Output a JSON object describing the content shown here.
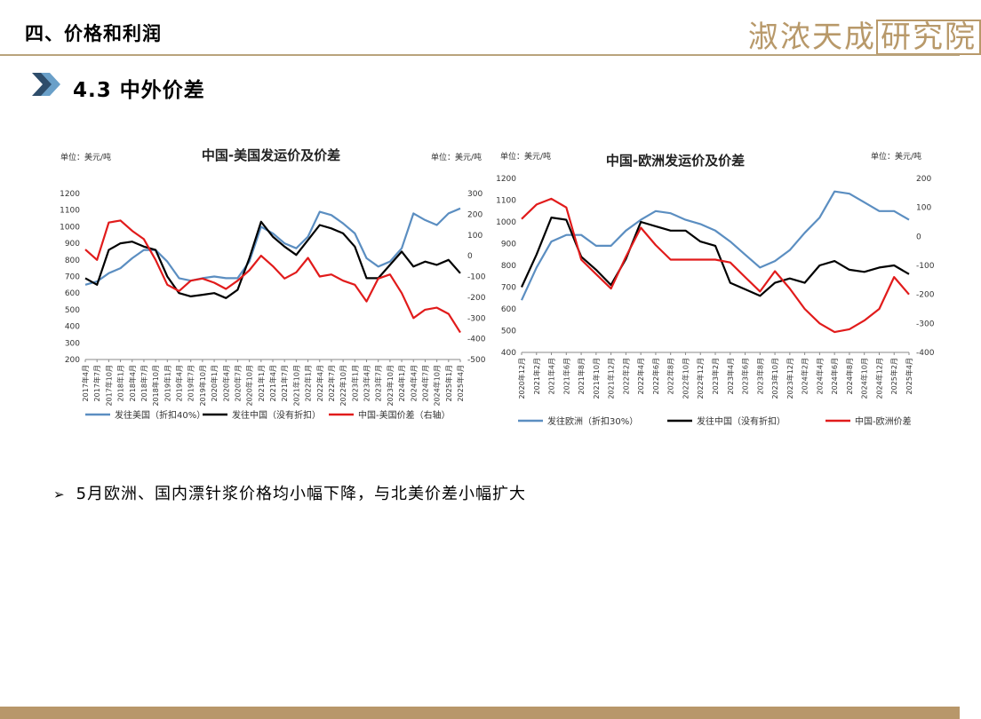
{
  "header": {
    "section_title": "四、价格和利润",
    "logo_text_a": "淑浓天成",
    "logo_text_b": "研究院"
  },
  "subtitle": "4.3 中外价差",
  "bullet": "5月欧洲、国内漂针浆价格均小幅下降，与北美价差小幅扩大",
  "colors": {
    "blue": "#5b8ec1",
    "black": "#000000",
    "red": "#e11b1b",
    "gold": "#b8996a"
  },
  "chart_data": [
    {
      "type": "line",
      "title": "中国-美国发运价及价差",
      "unit_left": "单位：美元/吨",
      "unit_right": "单位：美元/吨",
      "x_labels": [
        "2017年4月",
        "2017年7月",
        "2017年10月",
        "2018年1月",
        "2018年4月",
        "2018年7月",
        "2018年10月",
        "2019年1月",
        "2019年4月",
        "2019年7月",
        "2019年10月",
        "2020年1月",
        "2020年4月",
        "2020年7月",
        "2020年10月",
        "2021年1月",
        "2021年4月",
        "2021年7月",
        "2021年10月",
        "2022年1月",
        "2022年4月",
        "2022年7月",
        "2022年10月",
        "2023年1月",
        "2023年4月",
        "2023年7月",
        "2023年10月",
        "2024年1月",
        "2024年4月",
        "2024年7月",
        "2024年10月",
        "2025年1月",
        "2025年4月"
      ],
      "y_left": {
        "min": 200,
        "max": 1200,
        "ticks": [
          200,
          300,
          400,
          500,
          600,
          700,
          800,
          900,
          1000,
          1100,
          1200
        ]
      },
      "y_right": {
        "min": -500,
        "max": 300,
        "ticks": [
          -500,
          -400,
          -300,
          -200,
          -100,
          0,
          100,
          200,
          300
        ]
      },
      "series": [
        {
          "name": "发往美国（折扣40%）",
          "axis": "left",
          "color": "#5b8ec1",
          "values": [
            650,
            670,
            720,
            750,
            810,
            860,
            860,
            790,
            690,
            675,
            690,
            700,
            690,
            690,
            790,
            1000,
            960,
            900,
            870,
            940,
            1090,
            1070,
            1020,
            960,
            810,
            760,
            790,
            870,
            1080,
            1040,
            1010,
            1080,
            1110
          ]
        },
        {
          "name": "发往中国（没有折扣）",
          "axis": "left",
          "color": "#000000",
          "values": [
            690,
            650,
            860,
            900,
            910,
            880,
            860,
            700,
            600,
            580,
            590,
            600,
            570,
            620,
            810,
            1030,
            940,
            880,
            830,
            920,
            1010,
            990,
            960,
            880,
            690,
            690,
            770,
            850,
            760,
            790,
            770,
            800,
            720
          ]
        },
        {
          "name": "中国-美国价差（右轴）",
          "axis": "right",
          "color": "#e11b1b",
          "values": [
            30,
            -20,
            160,
            170,
            120,
            80,
            -20,
            -140,
            -170,
            -120,
            -110,
            -130,
            -160,
            -120,
            -70,
            0,
            -50,
            -110,
            -80,
            -10,
            -100,
            -90,
            -120,
            -140,
            -220,
            -110,
            -90,
            -180,
            -300,
            -260,
            -250,
            -280,
            -370
          ]
        }
      ]
    },
    {
      "type": "line",
      "title": "中国-欧洲发运价及价差",
      "unit_left": "单位：美元/吨",
      "unit_right": "单位：美元/吨",
      "x_labels": [
        "2020年12月",
        "2021年2月",
        "2021年4月",
        "2021年6月",
        "2021年8月",
        "2021年10月",
        "2021年12月",
        "2022年2月",
        "2022年4月",
        "2022年6月",
        "2022年8月",
        "2022年10月",
        "2022年12月",
        "2023年2月",
        "2023年4月",
        "2023年6月",
        "2023年8月",
        "2023年10月",
        "2023年12月",
        "2024年2月",
        "2024年4月",
        "2024年6月",
        "2024年8月",
        "2024年10月",
        "2024年12月",
        "2025年2月",
        "2025年4月"
      ],
      "y_left": {
        "min": 400,
        "max": 1200,
        "ticks": [
          400,
          500,
          600,
          700,
          800,
          900,
          1000,
          1100,
          1200
        ]
      },
      "y_right": {
        "min": -400,
        "max": 200,
        "ticks": [
          -400,
          -300,
          -200,
          -100,
          0,
          100,
          200
        ]
      },
      "series": [
        {
          "name": "发往欧洲（折扣30%）",
          "axis": "left",
          "color": "#5b8ec1",
          "values": [
            640,
            790,
            910,
            940,
            940,
            890,
            890,
            960,
            1010,
            1050,
            1040,
            1010,
            990,
            960,
            910,
            850,
            790,
            820,
            870,
            950,
            1020,
            1140,
            1130,
            1090,
            1050,
            1050,
            1010
          ]
        },
        {
          "name": "发往中国（没有折扣）",
          "axis": "left",
          "color": "#000000",
          "values": [
            700,
            850,
            1020,
            1010,
            840,
            780,
            710,
            830,
            1000,
            980,
            960,
            960,
            910,
            890,
            720,
            690,
            660,
            720,
            740,
            720,
            800,
            820,
            780,
            770,
            790,
            800,
            760
          ]
        },
        {
          "name": "中国-欧洲价差",
          "axis": "right",
          "color": "#e11b1b",
          "values": [
            60,
            110,
            130,
            100,
            -80,
            -130,
            -180,
            -70,
            30,
            -30,
            -80,
            -80,
            -80,
            -80,
            -90,
            -140,
            -190,
            -120,
            -180,
            -250,
            -300,
            -330,
            -320,
            -290,
            -250,
            -140,
            -200
          ]
        }
      ]
    }
  ]
}
